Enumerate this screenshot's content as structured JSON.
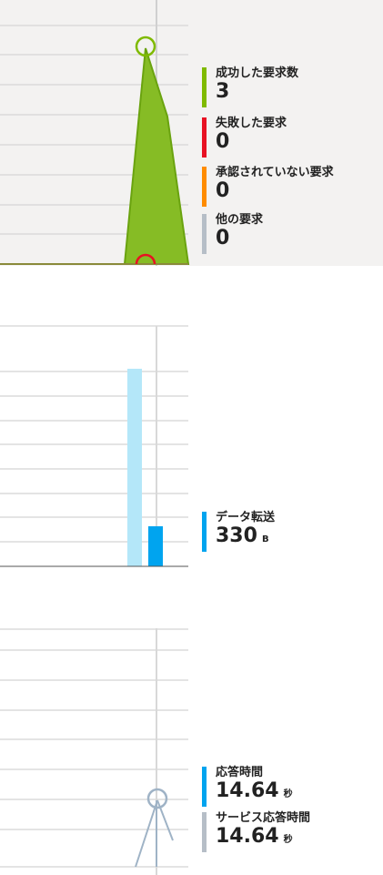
{
  "colors": {
    "success": "#7fba00",
    "failed": "#e81123",
    "unauthorized": "#ff8c00",
    "other": "#b6bec7",
    "transfer": "#00a4ef",
    "transfer_light": "#b4e7f9",
    "response": "#00a4ef",
    "server_response": "#b6bec7",
    "grid": "#c8c8c8",
    "cursor": "#d0d0d0"
  },
  "requests_panel": {
    "legend": [
      {
        "label": "成功した要求数",
        "value": "3",
        "color": "#7fba00"
      },
      {
        "label": "失敗した要求",
        "value": "0",
        "color": "#e81123"
      },
      {
        "label": "承認されていない要求",
        "value": "0",
        "color": "#ff8c00"
      },
      {
        "label": "他の要求",
        "value": "0",
        "color": "#b6bec7"
      }
    ]
  },
  "transfer_panel": {
    "legend": [
      {
        "label": "データ転送",
        "value": "330",
        "unit": "B",
        "color": "#00a4ef"
      }
    ]
  },
  "response_panel": {
    "legend": [
      {
        "label": "応答時間",
        "value": "14.64",
        "unit": "秒",
        "color": "#00a4ef"
      },
      {
        "label": "サービス応答時間",
        "value": "14.64",
        "unit": "秒",
        "color": "#b6bec7"
      }
    ]
  }
}
